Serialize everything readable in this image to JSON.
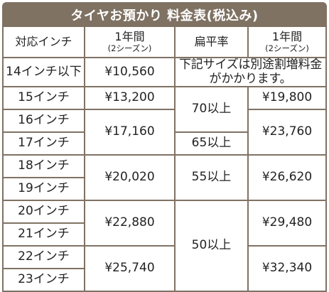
{
  "title": "タイヤお預かり 料金表(税込み)",
  "headers": {
    "size": "対応インチ",
    "price_line1": "1年間",
    "price_line2": "(2シーズン)",
    "ratio": "扁平率",
    "price2_line1": "1年間",
    "price2_line2": "(2シーズン)"
  },
  "rows": {
    "r14": {
      "size": "14インチ以下",
      "price": "¥10,560",
      "note": "下記サイズは別途割増料金がかかります。"
    },
    "r15": {
      "size": "15インチ",
      "price": "¥13,200",
      "price2": "¥19,800"
    },
    "r16": {
      "size": "16インチ"
    },
    "r17": {
      "size": "17インチ"
    },
    "p1617": "¥17,160",
    "ratio70": "70以上",
    "ratio65": "65以上",
    "p2_1617": "¥23,760",
    "r18": {
      "size": "18インチ"
    },
    "r19": {
      "size": "19インチ"
    },
    "p1819": "¥20,020",
    "ratio55": "55以上",
    "p2_1819": "¥26,620",
    "r20": {
      "size": "20インチ"
    },
    "r21": {
      "size": "21インチ"
    },
    "p2021": "¥22,880",
    "ratio50": "50以上",
    "p2_2021": "¥29,480",
    "r22": {
      "size": "22インチ"
    },
    "r23": {
      "size": "23インチ"
    },
    "p2223": "¥25,740",
    "p2_2223": "¥32,340"
  },
  "colors": {
    "frame": "#7f7263",
    "text": "#222222",
    "title_text": "#ffffff"
  }
}
